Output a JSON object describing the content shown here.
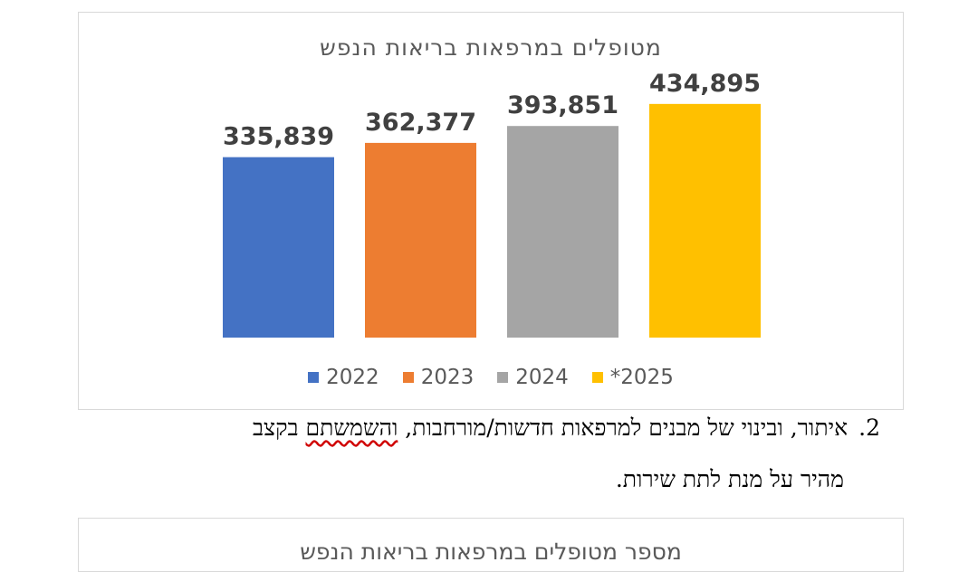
{
  "chart_data": {
    "type": "bar",
    "title": "מטופלים במרפאות בריאות הנפש",
    "categories": [
      "2022",
      "2023",
      "2024",
      "*2025"
    ],
    "values": [
      335839,
      362377,
      393851,
      434895
    ],
    "value_labels": [
      "335,839",
      "362,377",
      "393,851",
      "434,895"
    ],
    "colors": [
      "#4472c4",
      "#ed7d31",
      "#a5a5a5",
      "#ffc000"
    ],
    "legend_position": "bottom",
    "grid": false,
    "xlabel": "",
    "ylabel": ""
  },
  "paragraph": {
    "number": "2.",
    "line1_before": "איתור, ובינוי של מבנים למרפאות חדשות/מורחבות, ",
    "line1_flagged": "והשמשתם",
    "line1_after": " בקצב",
    "line2": "מהיר על מנת לתת שירות."
  },
  "chart2": {
    "title": "מספר מטופלים במרפאות בריאות הנפש"
  }
}
